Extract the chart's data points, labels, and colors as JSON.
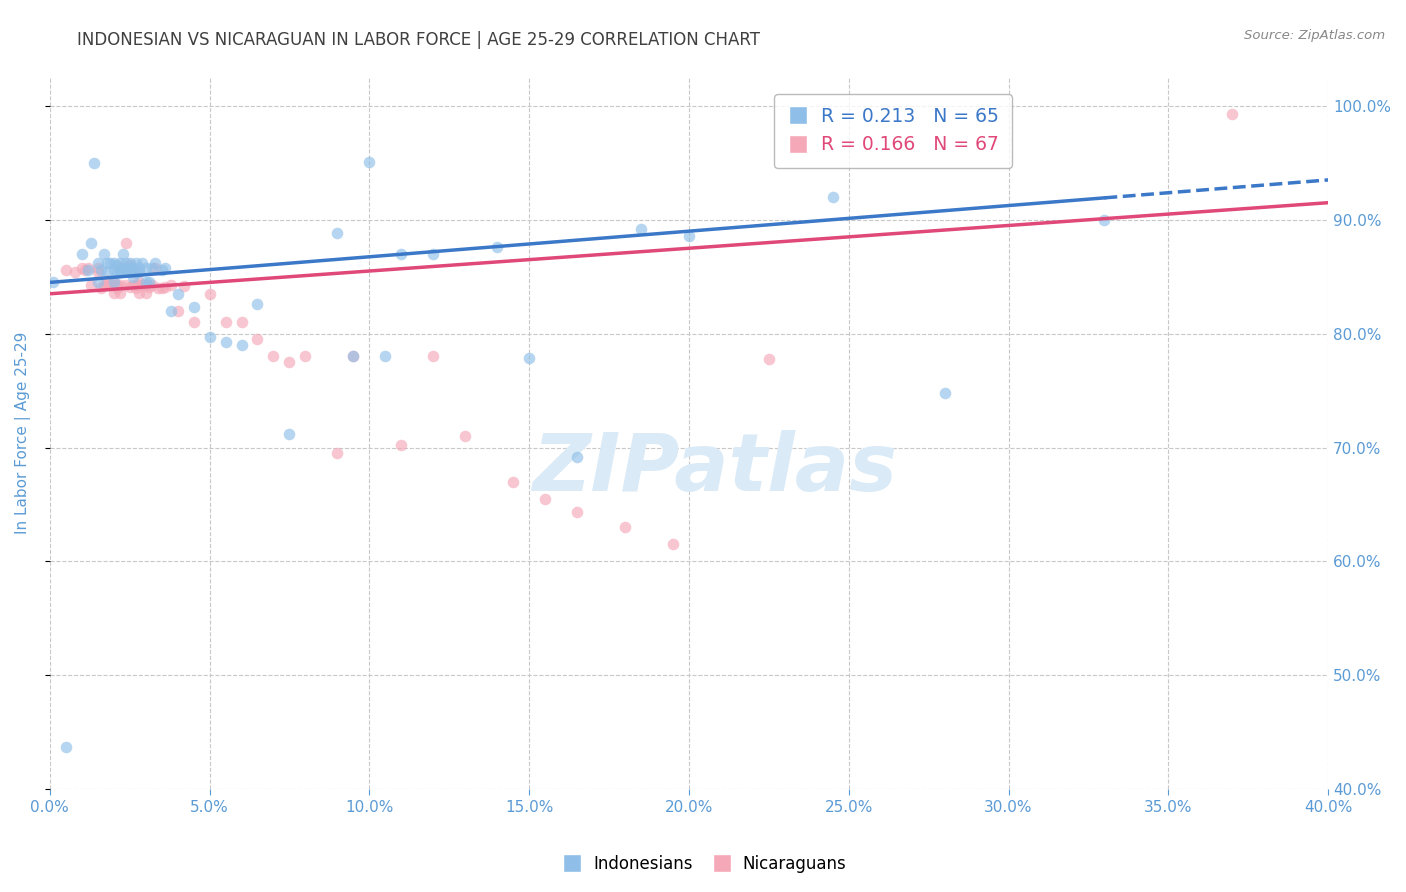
{
  "title": "INDONESIAN VS NICARAGUAN IN LABOR FORCE | AGE 25-29 CORRELATION CHART",
  "source_text": "Source: ZipAtlas.com",
  "ylabel": "In Labor Force | Age 25-29",
  "legend_indonesian": "R = 0.213   N = 65",
  "legend_nicaraguan": "R = 0.166   N = 67",
  "color_indonesian": "#8fbfe8",
  "color_nicaraguan": "#f4a8b8",
  "color_trendline_indonesian": "#3c78c8",
  "color_trendline_nicaraguan": "#e04878",
  "color_axis_labels": "#5b9bd5",
  "color_title": "#404040",
  "color_source": "#888888",
  "color_grid": "#c8c8c8",
  "background_color": "#ffffff",
  "watermark_color": "#daeaf7",
  "xlim": [
    0.0,
    0.4
  ],
  "ylim": [
    0.4,
    1.025
  ],
  "xtick_vals": [
    0.0,
    0.05,
    0.1,
    0.15,
    0.2,
    0.25,
    0.3,
    0.35,
    0.4
  ],
  "ytick_vals": [
    0.4,
    0.5,
    0.6,
    0.7,
    0.8,
    0.9,
    1.0
  ],
  "scatter_alpha": 0.65,
  "marker_size": 70,
  "indonesian_x": [
    0.001,
    0.005,
    0.01,
    0.012,
    0.013,
    0.014,
    0.015,
    0.015,
    0.016,
    0.017,
    0.018,
    0.018,
    0.019,
    0.02,
    0.02,
    0.02,
    0.021,
    0.021,
    0.022,
    0.022,
    0.022,
    0.023,
    0.023,
    0.024,
    0.024,
    0.024,
    0.025,
    0.025,
    0.025,
    0.026,
    0.026,
    0.027,
    0.027,
    0.028,
    0.028,
    0.029,
    0.03,
    0.03,
    0.031,
    0.032,
    0.033,
    0.035,
    0.036,
    0.038,
    0.04,
    0.045,
    0.05,
    0.055,
    0.06,
    0.065,
    0.075,
    0.09,
    0.095,
    0.1,
    0.105,
    0.11,
    0.12,
    0.14,
    0.15,
    0.165,
    0.185,
    0.2,
    0.245,
    0.28,
    0.33
  ],
  "indonesian_y": [
    0.845,
    0.437,
    0.87,
    0.856,
    0.88,
    0.95,
    0.845,
    0.862,
    0.856,
    0.87,
    0.854,
    0.862,
    0.862,
    0.856,
    0.845,
    0.862,
    0.854,
    0.86,
    0.854,
    0.856,
    0.862,
    0.858,
    0.87,
    0.856,
    0.856,
    0.862,
    0.854,
    0.858,
    0.862,
    0.858,
    0.85,
    0.854,
    0.862,
    0.854,
    0.858,
    0.862,
    0.845,
    0.858,
    0.845,
    0.858,
    0.862,
    0.856,
    0.858,
    0.82,
    0.835,
    0.823,
    0.797,
    0.793,
    0.79,
    0.826,
    0.712,
    0.888,
    0.78,
    0.951,
    0.78,
    0.87,
    0.87,
    0.876,
    0.779,
    0.692,
    0.892,
    0.886,
    0.92,
    0.748,
    0.9
  ],
  "nicaraguan_x": [
    0.005,
    0.008,
    0.01,
    0.011,
    0.012,
    0.013,
    0.015,
    0.015,
    0.016,
    0.017,
    0.018,
    0.018,
    0.019,
    0.02,
    0.02,
    0.02,
    0.02,
    0.021,
    0.021,
    0.022,
    0.022,
    0.022,
    0.023,
    0.024,
    0.024,
    0.025,
    0.025,
    0.026,
    0.026,
    0.027,
    0.027,
    0.028,
    0.028,
    0.028,
    0.029,
    0.03,
    0.03,
    0.03,
    0.031,
    0.032,
    0.033,
    0.034,
    0.035,
    0.036,
    0.038,
    0.04,
    0.042,
    0.045,
    0.05,
    0.055,
    0.06,
    0.065,
    0.07,
    0.075,
    0.08,
    0.09,
    0.095,
    0.11,
    0.12,
    0.13,
    0.145,
    0.155,
    0.165,
    0.18,
    0.195,
    0.225,
    0.37
  ],
  "nicaraguan_y": [
    0.856,
    0.854,
    0.858,
    0.856,
    0.858,
    0.843,
    0.854,
    0.858,
    0.84,
    0.843,
    0.843,
    0.847,
    0.843,
    0.843,
    0.836,
    0.843,
    0.845,
    0.84,
    0.843,
    0.836,
    0.843,
    0.858,
    0.858,
    0.843,
    0.88,
    0.86,
    0.841,
    0.854,
    0.843,
    0.84,
    0.843,
    0.845,
    0.843,
    0.836,
    0.843,
    0.843,
    0.836,
    0.843,
    0.841,
    0.843,
    0.858,
    0.84,
    0.84,
    0.841,
    0.843,
    0.82,
    0.842,
    0.81,
    0.835,
    0.81,
    0.81,
    0.795,
    0.78,
    0.775,
    0.78,
    0.695,
    0.78,
    0.702,
    0.78,
    0.71,
    0.67,
    0.655,
    0.643,
    0.63,
    0.615,
    0.778,
    0.993
  ]
}
